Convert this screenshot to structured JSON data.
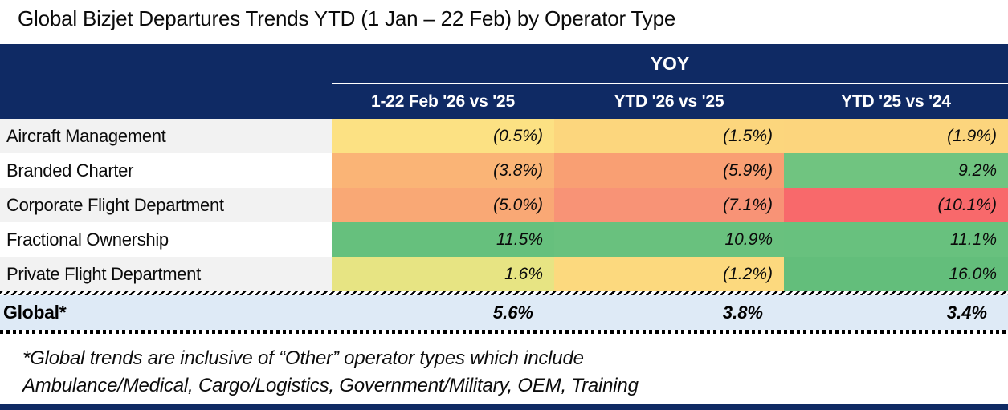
{
  "title": "Global Bizjet Departures Trends YTD (1 Jan – 22 Feb) by Operator Type",
  "table": {
    "group_header": "YOY",
    "columns": [
      "1-22 Feb '26 vs '25",
      "YTD '26 vs '25",
      "YTD '25 vs '24"
    ],
    "rows": [
      {
        "label": "Aircraft Management",
        "values": [
          "(0.5%)",
          "(1.5%)",
          "(1.9%)"
        ],
        "colors": [
          "#FCE183",
          "#FCD67D",
          "#FCD57D"
        ]
      },
      {
        "label": "Branded Charter",
        "values": [
          "(3.8%)",
          "(5.9%)",
          "9.2%"
        ],
        "colors": [
          "#FAB476",
          "#F99F73",
          "#70C480"
        ]
      },
      {
        "label": "Corporate Flight Department",
        "values": [
          "(5.0%)",
          "(7.1%)",
          "(10.1%)"
        ],
        "colors": [
          "#F9A875",
          "#F89376",
          "#F8696B"
        ]
      },
      {
        "label": "Fractional Ownership",
        "values": [
          "11.5%",
          "10.9%",
          "11.1%"
        ],
        "colors": [
          "#66C07D",
          "#69C17E",
          "#68C17E"
        ]
      },
      {
        "label": "Private Flight Department",
        "values": [
          "1.6%",
          "(1.2%)",
          "16.0%"
        ],
        "colors": [
          "#E7E483",
          "#FCD97E",
          "#63BE7B"
        ]
      }
    ],
    "global_row": {
      "label": "Global*",
      "values": [
        "5.6%",
        "3.8%",
        "3.4%"
      ]
    }
  },
  "footnote": {
    "line1": "*Global trends are inclusive of “Other” operator types which include",
    "line2": "Ambulance/Medical, Cargo/Logistics, Government/Military, OEM, Training"
  },
  "colors": {
    "header_navy": "#0F2A64",
    "global_row_bg": "#DEEAF6",
    "row_stripe": "#F2F2F2",
    "scale_negative_red": "#F8696B",
    "scale_mid_yellow": "#FFEB84",
    "scale_positive_green": "#63BE7B"
  },
  "chart_data": {
    "type": "table",
    "title": "Global Bizjet Departures Trends YTD (1 Jan – 22 Feb) by Operator Type",
    "group_header": "YOY",
    "columns": [
      "1-22 Feb '26 vs '25",
      "YTD '26 vs '25",
      "YTD '25 vs '24"
    ],
    "units": "percent YoY change; parentheses denote negative values",
    "rows": [
      {
        "operator_type": "Aircraft Management",
        "values_pct": [
          -0.5,
          -1.5,
          -1.9
        ]
      },
      {
        "operator_type": "Branded Charter",
        "values_pct": [
          -3.8,
          -5.9,
          9.2
        ]
      },
      {
        "operator_type": "Corporate Flight Department",
        "values_pct": [
          -5.0,
          -7.1,
          -10.1
        ]
      },
      {
        "operator_type": "Fractional Ownership",
        "values_pct": [
          11.5,
          10.9,
          11.1
        ]
      },
      {
        "operator_type": "Private Flight Department",
        "values_pct": [
          1.6,
          -1.2,
          16.0
        ]
      }
    ],
    "global_row": {
      "label": "Global*",
      "values_pct": [
        5.6,
        3.8,
        3.4
      ]
    },
    "footnote": "*Global trends are inclusive of “Other” operator types which include Ambulance/Medical, Cargo/Logistics, Government/Military, OEM, Training",
    "layout_hints": "cells conditionally color-scaled red→yellow→green by value; global row highlighted light blue"
  }
}
